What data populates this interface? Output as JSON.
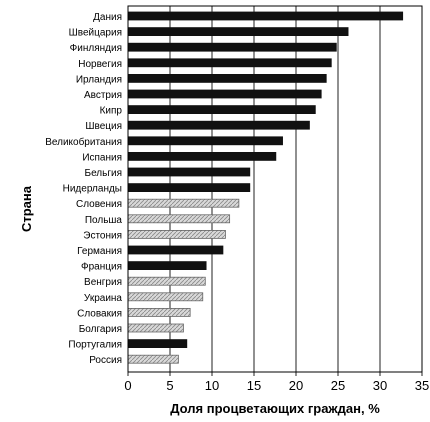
{
  "chart_data": {
    "type": "bar",
    "orientation": "horizontal",
    "title": "",
    "xlabel": "Доля процветающих граждан, %",
    "ylabel": "Страна",
    "xlim": [
      0,
      35
    ],
    "xticks": [
      0,
      5,
      10,
      15,
      20,
      25,
      30,
      35
    ],
    "grid": true,
    "categories": [
      "Дания",
      "Швейцария",
      "Финляндия",
      "Норвегия",
      "Ирландия",
      "Австрия",
      "Кипр",
      "Швеция",
      "Великобритания",
      "Испания",
      "Бельгия",
      "Нидерланды",
      "Словения",
      "Польша",
      "Эстония",
      "Германия",
      "Франция",
      "Венгрия",
      "Украина",
      "Словакия",
      "Болгария",
      "Португалия",
      "Россия"
    ],
    "values": [
      32.7,
      26.2,
      24.8,
      24.2,
      23.6,
      23.0,
      22.3,
      21.6,
      18.4,
      17.6,
      14.5,
      14.5,
      13.2,
      12.1,
      11.6,
      11.3,
      9.3,
      9.2,
      8.9,
      7.4,
      6.6,
      7.0,
      6.0
    ],
    "bar_style": [
      "dark",
      "dark",
      "dark",
      "dark",
      "dark",
      "dark",
      "dark",
      "dark",
      "dark",
      "dark",
      "dark",
      "dark",
      "hatched",
      "hatched",
      "hatched",
      "dark",
      "dark",
      "hatched",
      "hatched",
      "hatched",
      "hatched",
      "dark",
      "hatched"
    ],
    "colors": {
      "dark": "#111111",
      "hatched_fill": "#d9d9d9",
      "hatched_stroke": "#666666",
      "grid": "#222222",
      "text": "#000000"
    }
  }
}
